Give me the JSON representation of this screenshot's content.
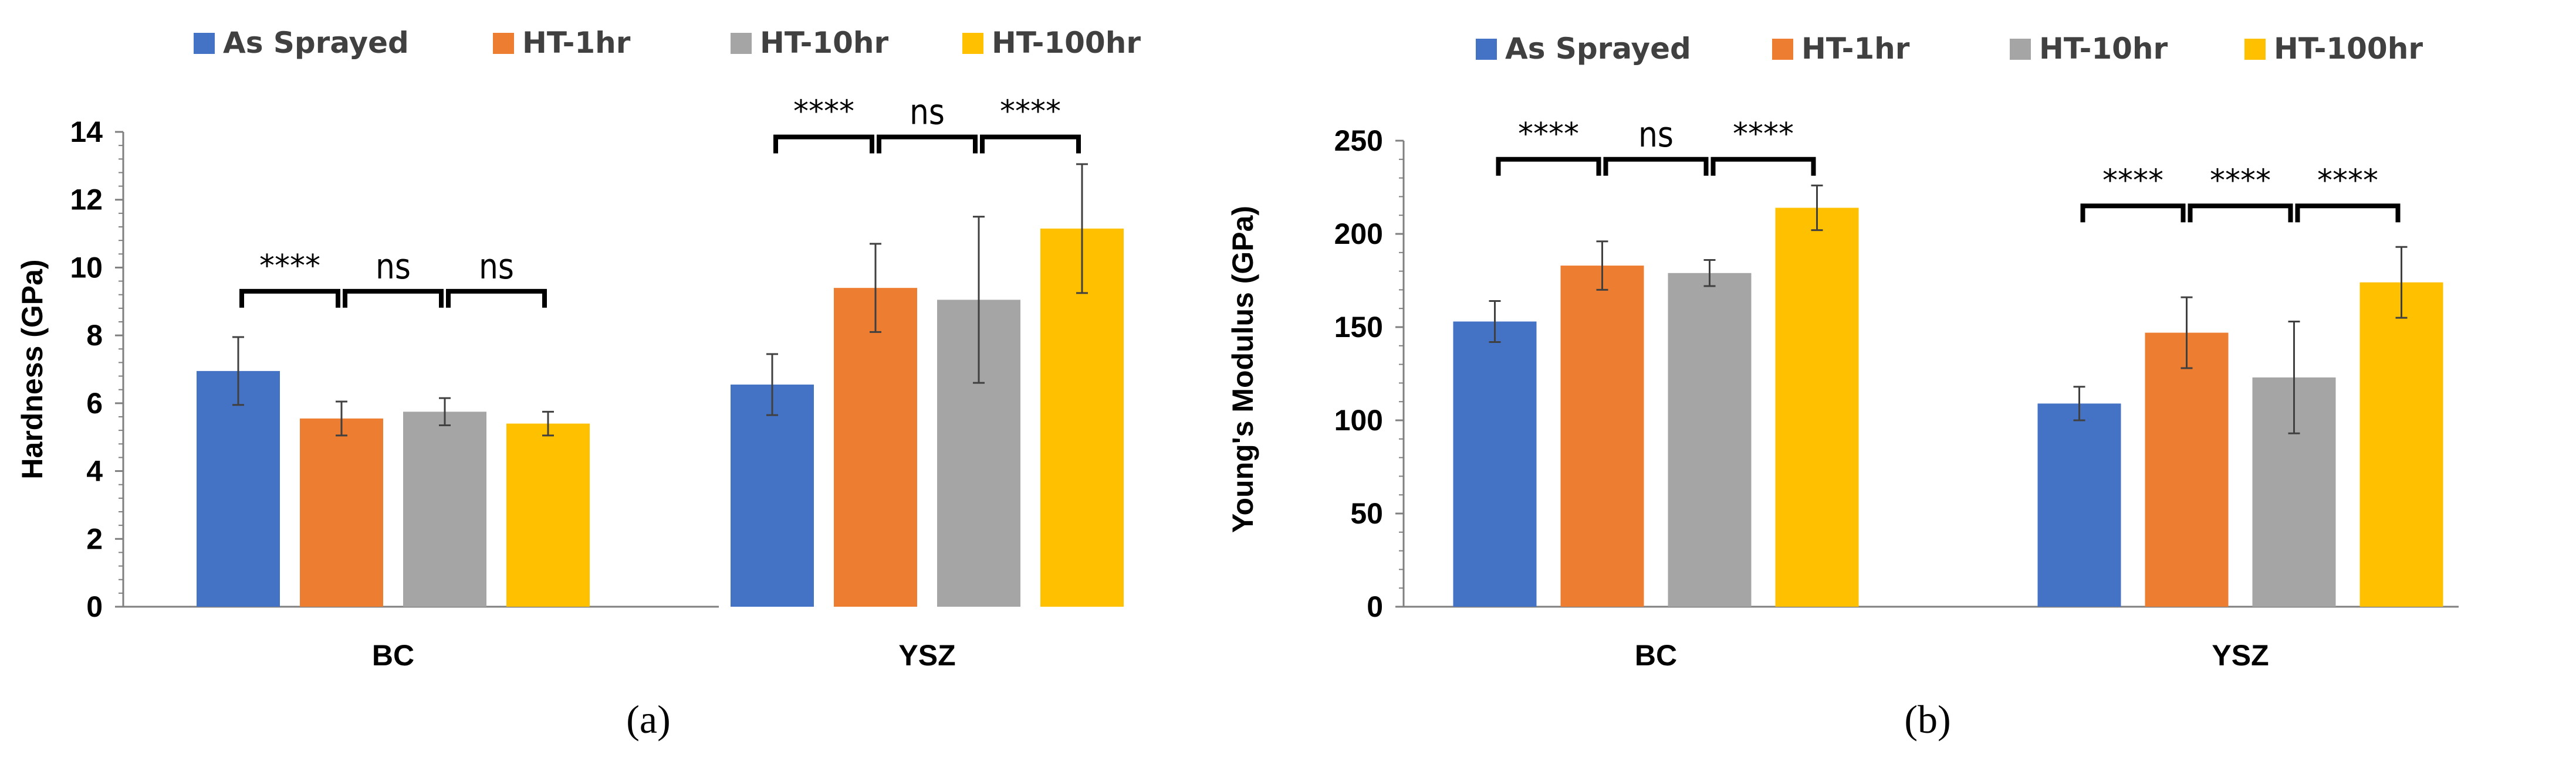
{
  "colors": {
    "As Sprayed": "#4472C4",
    "HT-1hr": "#ED7D31",
    "HT-10hr": "#A5A5A5",
    "HT-100hr": "#FFC000"
  },
  "chart_data": [
    {
      "type": "bar",
      "panel_label": "(a)",
      "categories": [
        "BC",
        "YSZ"
      ],
      "ylabel": "Hardness (GPa)",
      "ylim": [
        0,
        14
      ],
      "yticks": [
        "0",
        "2",
        "4",
        "6",
        "8",
        "10",
        "12",
        "14"
      ],
      "legend": [
        "As Sprayed",
        "HT-1hr",
        "HT-10hr",
        "HT-100hr"
      ],
      "legend_position": "top",
      "series": [
        {
          "name": "As Sprayed",
          "values": [
            6.95,
            6.55
          ],
          "errors": [
            1.0,
            0.9
          ]
        },
        {
          "name": "HT-1hr",
          "values": [
            5.55,
            9.4
          ],
          "errors": [
            0.5,
            1.3
          ]
        },
        {
          "name": "HT-10hr",
          "values": [
            5.75,
            9.05
          ],
          "errors": [
            0.4,
            2.45
          ]
        },
        {
          "name": "HT-100hr",
          "values": [
            5.4,
            11.15
          ],
          "errors": [
            0.35,
            1.9
          ]
        }
      ],
      "significance": [
        {
          "category": 0,
          "pairs": [
            [
              "****",
              "ns",
              "ns"
            ]
          ],
          "level": 9.3
        },
        {
          "category": 1,
          "pairs": [
            [
              "****",
              "ns",
              "****"
            ]
          ],
          "level": 13.85
        }
      ],
      "significance_labels": [
        [
          "****",
          "ns",
          "ns"
        ],
        [
          "****",
          "ns",
          "****"
        ]
      ]
    },
    {
      "type": "bar",
      "panel_label": "(b)",
      "categories": [
        "BC",
        "YSZ"
      ],
      "ylabel": "Young's Modulus (GPa)",
      "ylim": [
        0,
        250
      ],
      "yticks": [
        "0",
        "50",
        "100",
        "150",
        "200",
        "250"
      ],
      "legend": [
        "As Sprayed",
        "HT-1hr",
        "HT-10hr",
        "HT-100hr"
      ],
      "legend_position": "top",
      "series": [
        {
          "name": "As Sprayed",
          "values": [
            153,
            109
          ],
          "errors": [
            11,
            9
          ]
        },
        {
          "name": "HT-1hr",
          "values": [
            183,
            147
          ],
          "errors": [
            13,
            19
          ]
        },
        {
          "name": "HT-10hr",
          "values": [
            179,
            123
          ],
          "errors": [
            7,
            30
          ]
        },
        {
          "name": "HT-100hr",
          "values": [
            214,
            174
          ],
          "errors": [
            12,
            19
          ]
        }
      ],
      "significance_levels": [
        240,
        215
      ],
      "significance_labels": [
        [
          "****",
          "ns",
          "****"
        ],
        [
          "****",
          "****",
          "****"
        ]
      ]
    }
  ]
}
